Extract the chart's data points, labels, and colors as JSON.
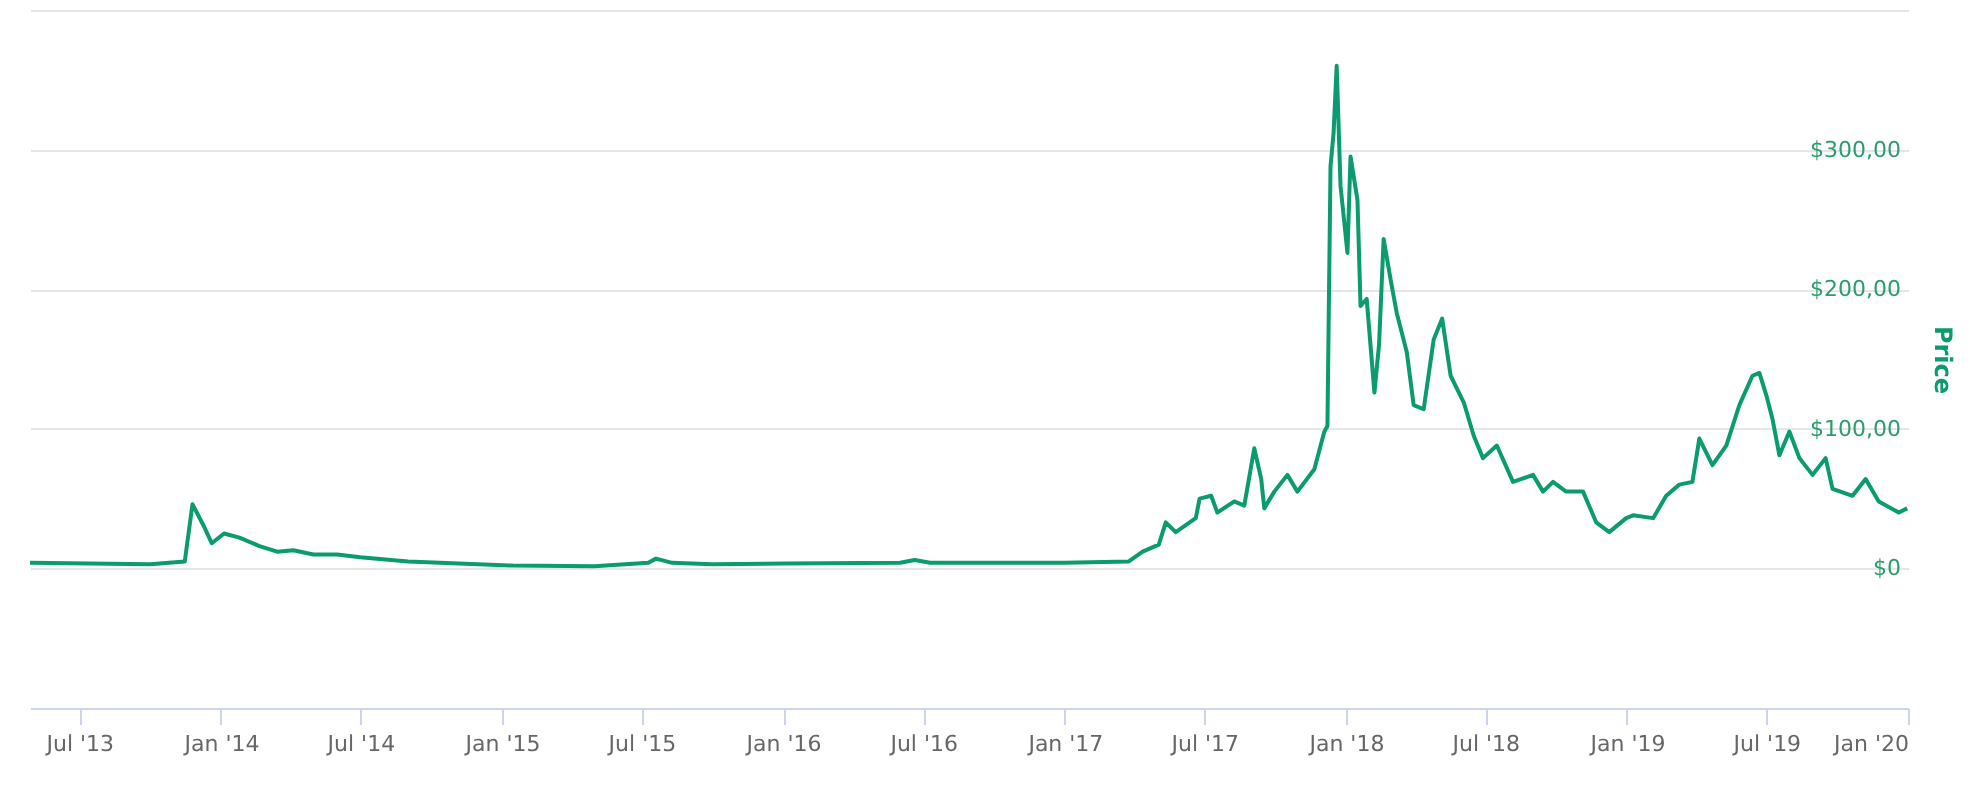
{
  "chart_data": {
    "type": "line",
    "ylabel": "Price",
    "grid": "y",
    "line_style": "solid",
    "x": [
      "2013-04-28",
      "2013-10-01",
      "2013-11-15",
      "2013-11-25",
      "2013-12-10",
      "2013-12-20",
      "2014-01-05",
      "2014-01-25",
      "2014-02-20",
      "2014-03-15",
      "2014-04-05",
      "2014-05-01",
      "2014-06-01",
      "2014-07-01",
      "2014-09-01",
      "2014-12-01",
      "2015-01-15",
      "2015-05-01",
      "2015-07-10",
      "2015-07-20",
      "2015-08-10",
      "2015-10-01",
      "2016-01-01",
      "2016-06-01",
      "2016-06-20",
      "2016-07-10",
      "2017-01-01",
      "2017-03-25",
      "2017-04-12",
      "2017-05-03",
      "2017-05-12",
      "2017-05-25",
      "2017-06-20",
      "2017-06-25",
      "2017-07-10",
      "2017-07-18",
      "2017-08-09",
      "2017-08-22",
      "2017-09-04",
      "2017-09-13",
      "2017-09-17",
      "2017-09-30",
      "2017-10-17",
      "2017-10-30",
      "2017-11-21",
      "2017-12-04",
      "2017-12-08",
      "2017-12-12",
      "2017-12-16",
      "2017-12-20",
      "2017-12-25",
      "2018-01-03",
      "2018-01-07",
      "2018-01-16",
      "2018-01-20",
      "2018-01-28",
      "2018-02-07",
      "2018-02-13",
      "2018-02-19",
      "2018-02-28",
      "2018-03-08",
      "2018-03-21",
      "2018-03-30",
      "2018-04-12",
      "2018-04-25",
      "2018-05-06",
      "2018-05-17",
      "2018-06-03",
      "2018-06-16",
      "2018-06-28",
      "2018-07-16",
      "2018-08-06",
      "2018-09-01",
      "2018-09-14",
      "2018-09-27",
      "2018-10-14",
      "2018-11-05",
      "2018-11-22",
      "2018-12-09",
      "2018-12-31",
      "2019-01-09",
      "2019-02-04",
      "2019-02-21",
      "2019-03-10",
      "2019-03-27",
      "2019-04-05",
      "2019-04-22",
      "2019-05-10",
      "2019-05-27",
      "2019-06-13",
      "2019-06-22",
      "2019-07-01",
      "2019-07-09",
      "2019-07-18",
      "2019-07-31",
      "2019-08-13",
      "2019-08-30",
      "2019-09-16",
      "2019-09-25",
      "2019-10-21",
      "2019-11-07",
      "2019-11-24",
      "2019-12-20",
      "2019-12-31"
    ],
    "series": [
      {
        "color": "#0a9b6e",
        "values": [
          4,
          3,
          5,
          46,
          30,
          18,
          25,
          22,
          16,
          12,
          13,
          10,
          10,
          8,
          5,
          3,
          2,
          1.5,
          4,
          7,
          4,
          3,
          3.5,
          4,
          6,
          4,
          4,
          5,
          12,
          17,
          33,
          26,
          36,
          50,
          52,
          40,
          48,
          45,
          86,
          64,
          43,
          55,
          67,
          55,
          71,
          98,
          102,
          288,
          312,
          360,
          274,
          226,
          295,
          264,
          188,
          193,
          126,
          160,
          236,
          207,
          183,
          155,
          117,
          114,
          164,
          179,
          138,
          119,
          95,
          79,
          88,
          62,
          67,
          55,
          62,
          55,
          55,
          33,
          26,
          36,
          38,
          36,
          52,
          60,
          62,
          93,
          74,
          88,
          117,
          138,
          140,
          124,
          107,
          81,
          98,
          79,
          67,
          79,
          57,
          52,
          64,
          48,
          40,
          43
        ]
      }
    ],
    "xlim": [
      "2013-04-28",
      "2020-01-01"
    ],
    "xticks": [
      {
        "value": "2013-07-01",
        "label": "Jul '13"
      },
      {
        "value": "2014-01-01",
        "label": "Jan '14"
      },
      {
        "value": "2014-07-01",
        "label": "Jul '14"
      },
      {
        "value": "2015-01-01",
        "label": "Jan '15"
      },
      {
        "value": "2015-07-01",
        "label": "Jul '15"
      },
      {
        "value": "2016-01-01",
        "label": "Jan '16"
      },
      {
        "value": "2016-07-01",
        "label": "Jul '16"
      },
      {
        "value": "2017-01-01",
        "label": "Jan '17"
      },
      {
        "value": "2017-07-01",
        "label": "Jul '17"
      },
      {
        "value": "2018-01-01",
        "label": "Jan '18"
      },
      {
        "value": "2018-07-01",
        "label": "Jul '18"
      },
      {
        "value": "2019-01-01",
        "label": "Jan '19"
      },
      {
        "value": "2019-07-01",
        "label": "Jul '19"
      },
      {
        "value": "2020-01-01",
        "label": "Jan '20"
      }
    ],
    "ylim": [
      -100,
      400
    ],
    "yticks": [
      {
        "value": 0,
        "label": "$0"
      },
      {
        "value": 100,
        "label": "$100,00"
      },
      {
        "value": 200,
        "label": "$200,00"
      },
      {
        "value": 300,
        "label": "$300,00"
      },
      {
        "value": 400,
        "label": null
      }
    ]
  }
}
